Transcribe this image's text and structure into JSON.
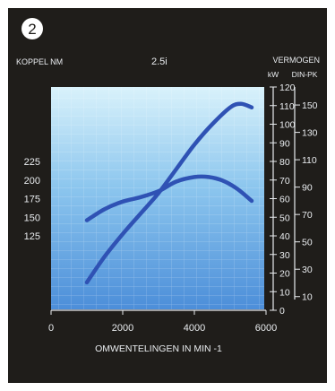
{
  "badge": "2",
  "chart_data": {
    "type": "line",
    "title": "2.5i",
    "xlabel": "OMWENTELINGEN IN MIN -1",
    "ylabel_left": "KOPPEL NM",
    "ylabel_right": "VERMOGEN",
    "right_units": [
      "kW",
      "DIN-PK"
    ],
    "xlim": [
      0,
      6000
    ],
    "x_ticks": [
      0,
      2000,
      4000,
      6000
    ],
    "ylim_kw": [
      0,
      120
    ],
    "kw_ticks": [
      0,
      10,
      20,
      30,
      40,
      50,
      60,
      70,
      80,
      90,
      100,
      110,
      120
    ],
    "pk_ticks": [
      10,
      30,
      50,
      70,
      90,
      110,
      130,
      150
    ],
    "torque_ticks": [
      125,
      150,
      175,
      200,
      225
    ],
    "series": [
      {
        "name": "Koppel",
        "unit": "Nm",
        "x": [
          1000,
          1500,
          2000,
          2500,
          3000,
          3500,
          4000,
          4400,
          4800,
          5200,
          5600
        ],
        "y": [
          146,
          161,
          171,
          177,
          185,
          198,
          204,
          204,
          199,
          188,
          172
        ]
      },
      {
        "name": "Vermogen",
        "unit": "kW",
        "x": [
          1000,
          1500,
          2000,
          2500,
          3000,
          3500,
          4000,
          4500,
          5000,
          5300,
          5600
        ],
        "y": [
          15,
          29,
          41,
          52,
          63,
          76,
          89,
          100,
          109,
          111,
          109
        ]
      }
    ],
    "colors": {
      "line": "#2f52b4",
      "background_top": "#d9f2fb",
      "background_bottom": "#4c8ed9",
      "panel": "#1f1d1a",
      "text": "#e9ecef"
    },
    "grid": true
  }
}
